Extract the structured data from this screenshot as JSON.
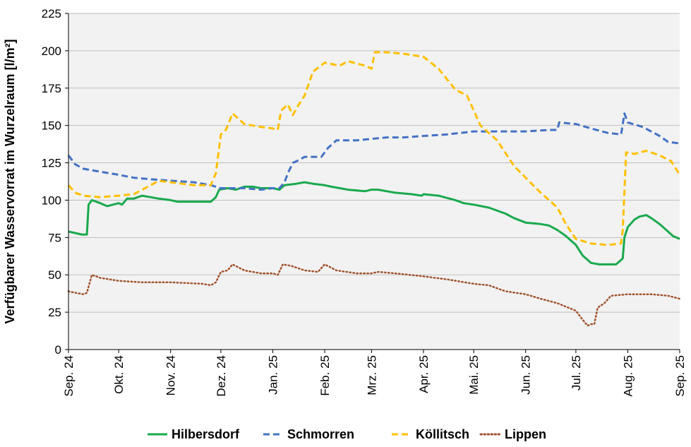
{
  "chart_data": {
    "type": "line",
    "title": "",
    "xlabel": "",
    "ylabel": "Verfügbarer Wasservorrat im Wurzelraum [l/m²]",
    "ylim": [
      0,
      225
    ],
    "yticks": [
      0,
      25,
      50,
      75,
      100,
      125,
      150,
      175,
      200,
      225
    ],
    "x_range": [
      "2024-09-01",
      "2025-09-01"
    ],
    "x_tick_labels": [
      "Sep. 24",
      "Okt. 24",
      "Nov. 24",
      "Dez. 24",
      "Jan. 25",
      "Feb. 25",
      "Mrz. 25",
      "Apr. 25",
      "Mai. 25",
      "Jun. 25",
      "Jul. 25",
      "Aug. 25",
      "Sep. 25"
    ],
    "grid": true,
    "legend_position": "bottom",
    "series": [
      {
        "name": "Hilbersdorf",
        "color": "#1aa94e",
        "dash": "solid",
        "points": [
          [
            "2024-09-01",
            79
          ],
          [
            "2024-09-05",
            78
          ],
          [
            "2024-09-09",
            77
          ],
          [
            "2024-09-12",
            77
          ],
          [
            "2024-09-13",
            97
          ],
          [
            "2024-09-15",
            100
          ],
          [
            "2024-09-20",
            98
          ],
          [
            "2024-09-24",
            96
          ],
          [
            "2024-10-01",
            98
          ],
          [
            "2024-10-03",
            97
          ],
          [
            "2024-10-06",
            101
          ],
          [
            "2024-10-10",
            101
          ],
          [
            "2024-10-15",
            103
          ],
          [
            "2024-10-20",
            102
          ],
          [
            "2024-10-25",
            101
          ],
          [
            "2024-11-01",
            100
          ],
          [
            "2024-11-05",
            99
          ],
          [
            "2024-11-15",
            99
          ],
          [
            "2024-11-25",
            99
          ],
          [
            "2024-11-28",
            102
          ],
          [
            "2024-11-30",
            107
          ],
          [
            "2024-12-05",
            108
          ],
          [
            "2024-12-10",
            107
          ],
          [
            "2024-12-15",
            109
          ],
          [
            "2024-12-20",
            109
          ],
          [
            "2024-12-25",
            108
          ],
          [
            "2025-01-01",
            108
          ],
          [
            "2025-01-05",
            107
          ],
          [
            "2025-01-08",
            110
          ],
          [
            "2025-01-15",
            111
          ],
          [
            "2025-01-20",
            112
          ],
          [
            "2025-01-25",
            111
          ],
          [
            "2025-02-01",
            110
          ],
          [
            "2025-02-05",
            109
          ],
          [
            "2025-02-15",
            107
          ],
          [
            "2025-02-25",
            106
          ],
          [
            "2025-03-01",
            107
          ],
          [
            "2025-03-05",
            107
          ],
          [
            "2025-03-10",
            106
          ],
          [
            "2025-03-15",
            105
          ],
          [
            "2025-03-25",
            104
          ],
          [
            "2025-03-31",
            103
          ],
          [
            "2025-04-01",
            104
          ],
          [
            "2025-04-10",
            103
          ],
          [
            "2025-04-20",
            100
          ],
          [
            "2025-04-25",
            98
          ],
          [
            "2025-05-01",
            97
          ],
          [
            "2025-05-10",
            95
          ],
          [
            "2025-05-20",
            91
          ],
          [
            "2025-05-25",
            88
          ],
          [
            "2025-06-01",
            85
          ],
          [
            "2025-06-10",
            84
          ],
          [
            "2025-06-15",
            83
          ],
          [
            "2025-06-20",
            80
          ],
          [
            "2025-06-25",
            76
          ],
          [
            "2025-07-01",
            70
          ],
          [
            "2025-07-05",
            63
          ],
          [
            "2025-07-10",
            58
          ],
          [
            "2025-07-15",
            57
          ],
          [
            "2025-07-20",
            57
          ],
          [
            "2025-07-25",
            57
          ],
          [
            "2025-07-27",
            59
          ],
          [
            "2025-07-29",
            61
          ],
          [
            "2025-07-30",
            75
          ],
          [
            "2025-08-01",
            82
          ],
          [
            "2025-08-05",
            87
          ],
          [
            "2025-08-08",
            89
          ],
          [
            "2025-08-12",
            90
          ],
          [
            "2025-08-15",
            88
          ],
          [
            "2025-08-20",
            84
          ],
          [
            "2025-08-25",
            79
          ],
          [
            "2025-08-28",
            76
          ],
          [
            "2025-09-01",
            74
          ]
        ]
      },
      {
        "name": "Schmorren",
        "color": "#4472c4",
        "dash": "dashed",
        "points": [
          [
            "2024-09-01",
            130
          ],
          [
            "2024-09-05",
            124
          ],
          [
            "2024-09-10",
            121
          ],
          [
            "2024-09-20",
            119
          ],
          [
            "2024-10-01",
            117
          ],
          [
            "2024-10-10",
            115
          ],
          [
            "2024-10-20",
            114
          ],
          [
            "2024-11-01",
            113
          ],
          [
            "2024-11-15",
            112
          ],
          [
            "2024-11-25",
            110
          ],
          [
            "2024-12-01",
            108
          ],
          [
            "2024-12-15",
            108
          ],
          [
            "2024-12-25",
            107
          ],
          [
            "2025-01-01",
            108
          ],
          [
            "2025-01-05",
            108
          ],
          [
            "2025-01-08",
            112
          ],
          [
            "2025-01-10",
            118
          ],
          [
            "2025-01-13",
            125
          ],
          [
            "2025-01-17",
            127
          ],
          [
            "2025-01-20",
            129
          ],
          [
            "2025-01-30",
            129
          ],
          [
            "2025-02-03",
            135
          ],
          [
            "2025-02-08",
            140
          ],
          [
            "2025-02-20",
            140
          ],
          [
            "2025-03-01",
            141
          ],
          [
            "2025-03-10",
            142
          ],
          [
            "2025-03-20",
            142
          ],
          [
            "2025-04-01",
            143
          ],
          [
            "2025-04-15",
            144
          ],
          [
            "2025-05-01",
            146
          ],
          [
            "2025-05-15",
            146
          ],
          [
            "2025-06-01",
            146
          ],
          [
            "2025-06-15",
            147
          ],
          [
            "2025-06-20",
            147
          ],
          [
            "2025-06-21",
            152
          ],
          [
            "2025-07-01",
            151
          ],
          [
            "2025-07-10",
            148
          ],
          [
            "2025-07-20",
            145
          ],
          [
            "2025-07-28",
            144
          ],
          [
            "2025-07-30",
            158
          ],
          [
            "2025-08-01",
            152
          ],
          [
            "2025-08-10",
            149
          ],
          [
            "2025-08-20",
            143
          ],
          [
            "2025-08-25",
            139
          ],
          [
            "2025-09-01",
            138
          ]
        ]
      },
      {
        "name": "Köllitsch",
        "color": "#ffc000",
        "dash": "dashed",
        "points": [
          [
            "2024-09-01",
            110
          ],
          [
            "2024-09-05",
            105
          ],
          [
            "2024-09-10",
            103
          ],
          [
            "2024-09-20",
            102
          ],
          [
            "2024-10-01",
            103
          ],
          [
            "2024-10-10",
            104
          ],
          [
            "2024-10-20",
            110
          ],
          [
            "2024-10-25",
            113
          ],
          [
            "2024-11-01",
            112
          ],
          [
            "2024-11-15",
            110
          ],
          [
            "2024-11-25",
            110
          ],
          [
            "2024-11-28",
            118
          ],
          [
            "2024-12-01",
            144
          ],
          [
            "2024-12-04",
            147
          ],
          [
            "2024-12-08",
            158
          ],
          [
            "2024-12-15",
            151
          ],
          [
            "2024-12-25",
            149
          ],
          [
            "2025-01-01",
            148
          ],
          [
            "2025-01-04",
            147
          ],
          [
            "2025-01-06",
            160
          ],
          [
            "2025-01-10",
            164
          ],
          [
            "2025-01-13",
            157
          ],
          [
            "2025-01-16",
            163
          ],
          [
            "2025-01-20",
            170
          ],
          [
            "2025-01-25",
            186
          ],
          [
            "2025-02-01",
            192
          ],
          [
            "2025-02-10",
            190
          ],
          [
            "2025-02-15",
            193
          ],
          [
            "2025-02-25",
            190
          ],
          [
            "2025-03-01",
            188
          ],
          [
            "2025-03-03",
            199
          ],
          [
            "2025-03-10",
            199
          ],
          [
            "2025-03-20",
            198
          ],
          [
            "2025-04-01",
            196
          ],
          [
            "2025-04-10",
            188
          ],
          [
            "2025-04-20",
            174
          ],
          [
            "2025-04-27",
            170
          ],
          [
            "2025-05-05",
            150
          ],
          [
            "2025-05-15",
            140
          ],
          [
            "2025-05-25",
            123
          ],
          [
            "2025-06-01",
            115
          ],
          [
            "2025-06-10",
            105
          ],
          [
            "2025-06-20",
            95
          ],
          [
            "2025-06-25",
            84
          ],
          [
            "2025-07-01",
            74
          ],
          [
            "2025-07-10",
            71
          ],
          [
            "2025-07-20",
            70
          ],
          [
            "2025-07-28",
            71
          ],
          [
            "2025-07-29",
            80
          ],
          [
            "2025-07-31",
            132
          ],
          [
            "2025-08-05",
            131
          ],
          [
            "2025-08-12",
            133
          ],
          [
            "2025-08-20",
            130
          ],
          [
            "2025-08-27",
            126
          ],
          [
            "2025-09-01",
            117
          ]
        ]
      },
      {
        "name": "Lippen",
        "color": "#a0522d",
        "dash": "dotted",
        "points": [
          [
            "2024-09-01",
            39
          ],
          [
            "2024-09-05",
            38
          ],
          [
            "2024-09-10",
            37
          ],
          [
            "2024-09-12",
            38
          ],
          [
            "2024-09-15",
            50
          ],
          [
            "2024-09-20",
            48
          ],
          [
            "2024-10-01",
            46
          ],
          [
            "2024-10-15",
            45
          ],
          [
            "2024-11-01",
            45
          ],
          [
            "2024-11-20",
            44
          ],
          [
            "2024-11-25",
            43
          ],
          [
            "2024-11-28",
            45
          ],
          [
            "2024-12-01",
            52
          ],
          [
            "2024-12-05",
            53
          ],
          [
            "2024-12-08",
            57
          ],
          [
            "2024-12-15",
            53
          ],
          [
            "2024-12-25",
            51
          ],
          [
            "2025-01-01",
            51
          ],
          [
            "2025-01-04",
            50
          ],
          [
            "2025-01-07",
            57
          ],
          [
            "2025-01-12",
            56
          ],
          [
            "2025-01-20",
            53
          ],
          [
            "2025-01-28",
            52
          ],
          [
            "2025-02-01",
            57
          ],
          [
            "2025-02-08",
            53
          ],
          [
            "2025-02-20",
            51
          ],
          [
            "2025-03-01",
            51
          ],
          [
            "2025-03-05",
            52
          ],
          [
            "2025-03-15",
            51
          ],
          [
            "2025-04-01",
            49
          ],
          [
            "2025-04-15",
            47
          ],
          [
            "2025-05-01",
            44
          ],
          [
            "2025-05-10",
            43
          ],
          [
            "2025-05-20",
            39
          ],
          [
            "2025-06-01",
            37
          ],
          [
            "2025-06-10",
            34
          ],
          [
            "2025-06-20",
            31
          ],
          [
            "2025-07-01",
            26
          ],
          [
            "2025-07-05",
            20
          ],
          [
            "2025-07-08",
            16
          ],
          [
            "2025-07-10",
            17
          ],
          [
            "2025-07-12",
            17
          ],
          [
            "2025-07-14",
            28
          ],
          [
            "2025-07-18",
            31
          ],
          [
            "2025-07-22",
            36
          ],
          [
            "2025-08-01",
            37
          ],
          [
            "2025-08-15",
            37
          ],
          [
            "2025-08-25",
            36
          ],
          [
            "2025-09-01",
            34
          ]
        ]
      }
    ]
  }
}
